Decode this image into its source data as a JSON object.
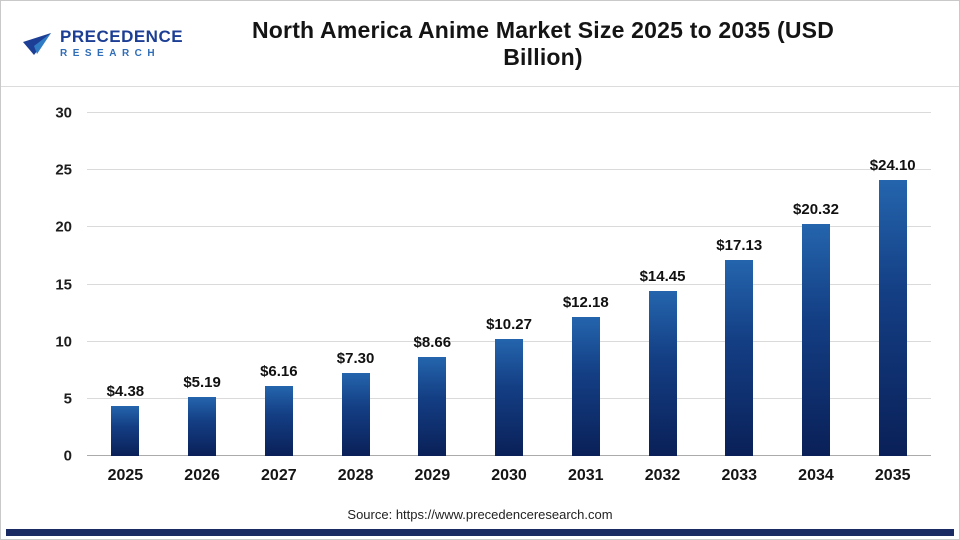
{
  "header": {
    "logo": {
      "line1": "PRECEDENCE",
      "line2": "RESEARCH"
    },
    "title": "North America Anime Market Size 2025 to 2035 (USD Billion)"
  },
  "chart_data": {
    "type": "bar",
    "title": "North America Anime Market Size 2025 to 2035 (USD Billion)",
    "categories": [
      "2025",
      "2026",
      "2027",
      "2028",
      "2029",
      "2030",
      "2031",
      "2032",
      "2033",
      "2034",
      "2035"
    ],
    "values": [
      4.38,
      5.19,
      6.16,
      7.3,
      8.66,
      10.27,
      12.18,
      14.45,
      17.13,
      20.32,
      24.1
    ],
    "value_labels": [
      "$4.38",
      "$5.19",
      "$6.16",
      "$7.30",
      "$8.66",
      "$10.27",
      "$12.18",
      "$14.45",
      "$17.13",
      "$20.32",
      "$24.10"
    ],
    "xlabel": "",
    "ylabel": "",
    "ylim": [
      0,
      30
    ],
    "yticks": [
      0,
      5,
      10,
      15,
      20,
      25,
      30
    ],
    "grid": true,
    "legend": "none",
    "bar_color_top": "#2465ad",
    "bar_color_bottom": "#0a2058",
    "accent_color": "#1a2a63"
  },
  "footer": {
    "source": "Source: https://www.precedenceresearch.com"
  }
}
